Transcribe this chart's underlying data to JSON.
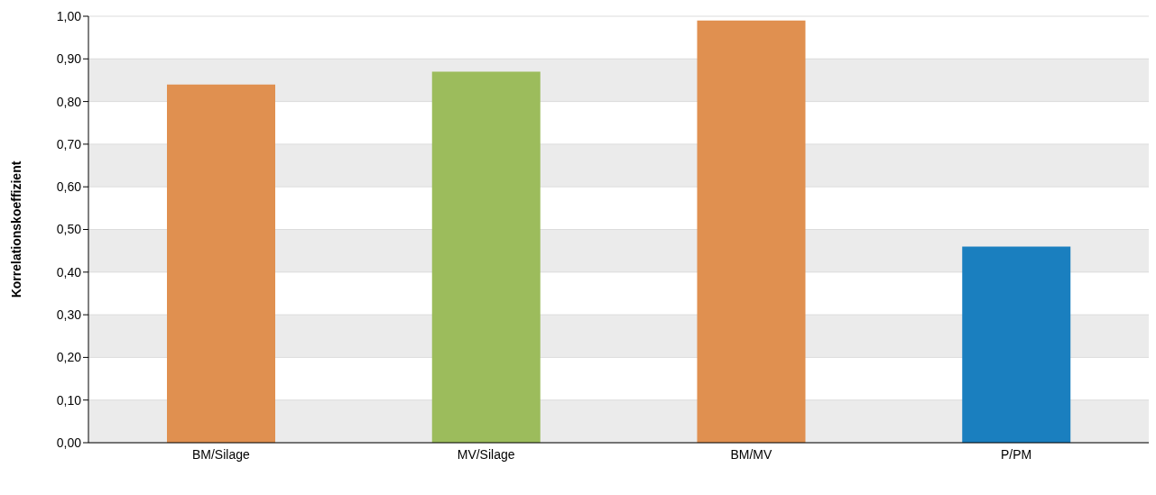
{
  "chart_data": {
    "type": "bar",
    "ylabel": "Korrelationskoeffizient",
    "categories": [
      "BM/Silage",
      "MV/Silage",
      "BM/MV",
      "P/PM"
    ],
    "values": [
      0.84,
      0.87,
      0.99,
      0.46
    ],
    "colors": [
      "#e09050",
      "#9cbc5c",
      "#e09050",
      "#1a7fbf"
    ],
    "ylim": [
      0,
      1
    ],
    "yticks": [
      {
        "value": 0,
        "label": "0,00"
      },
      {
        "value": 0.1,
        "label": "0,10"
      },
      {
        "value": 0.2,
        "label": "0,20"
      },
      {
        "value": 0.3,
        "label": "0,30"
      },
      {
        "value": 0.4,
        "label": "0,40"
      },
      {
        "value": 0.5,
        "label": "0,50"
      },
      {
        "value": 0.6,
        "label": "0,60"
      },
      {
        "value": 0.7,
        "label": "0,70"
      },
      {
        "value": 0.8,
        "label": "0,80"
      },
      {
        "value": 0.9,
        "label": "0,90"
      },
      {
        "value": 1,
        "label": "1,00"
      }
    ],
    "grid": "y"
  }
}
